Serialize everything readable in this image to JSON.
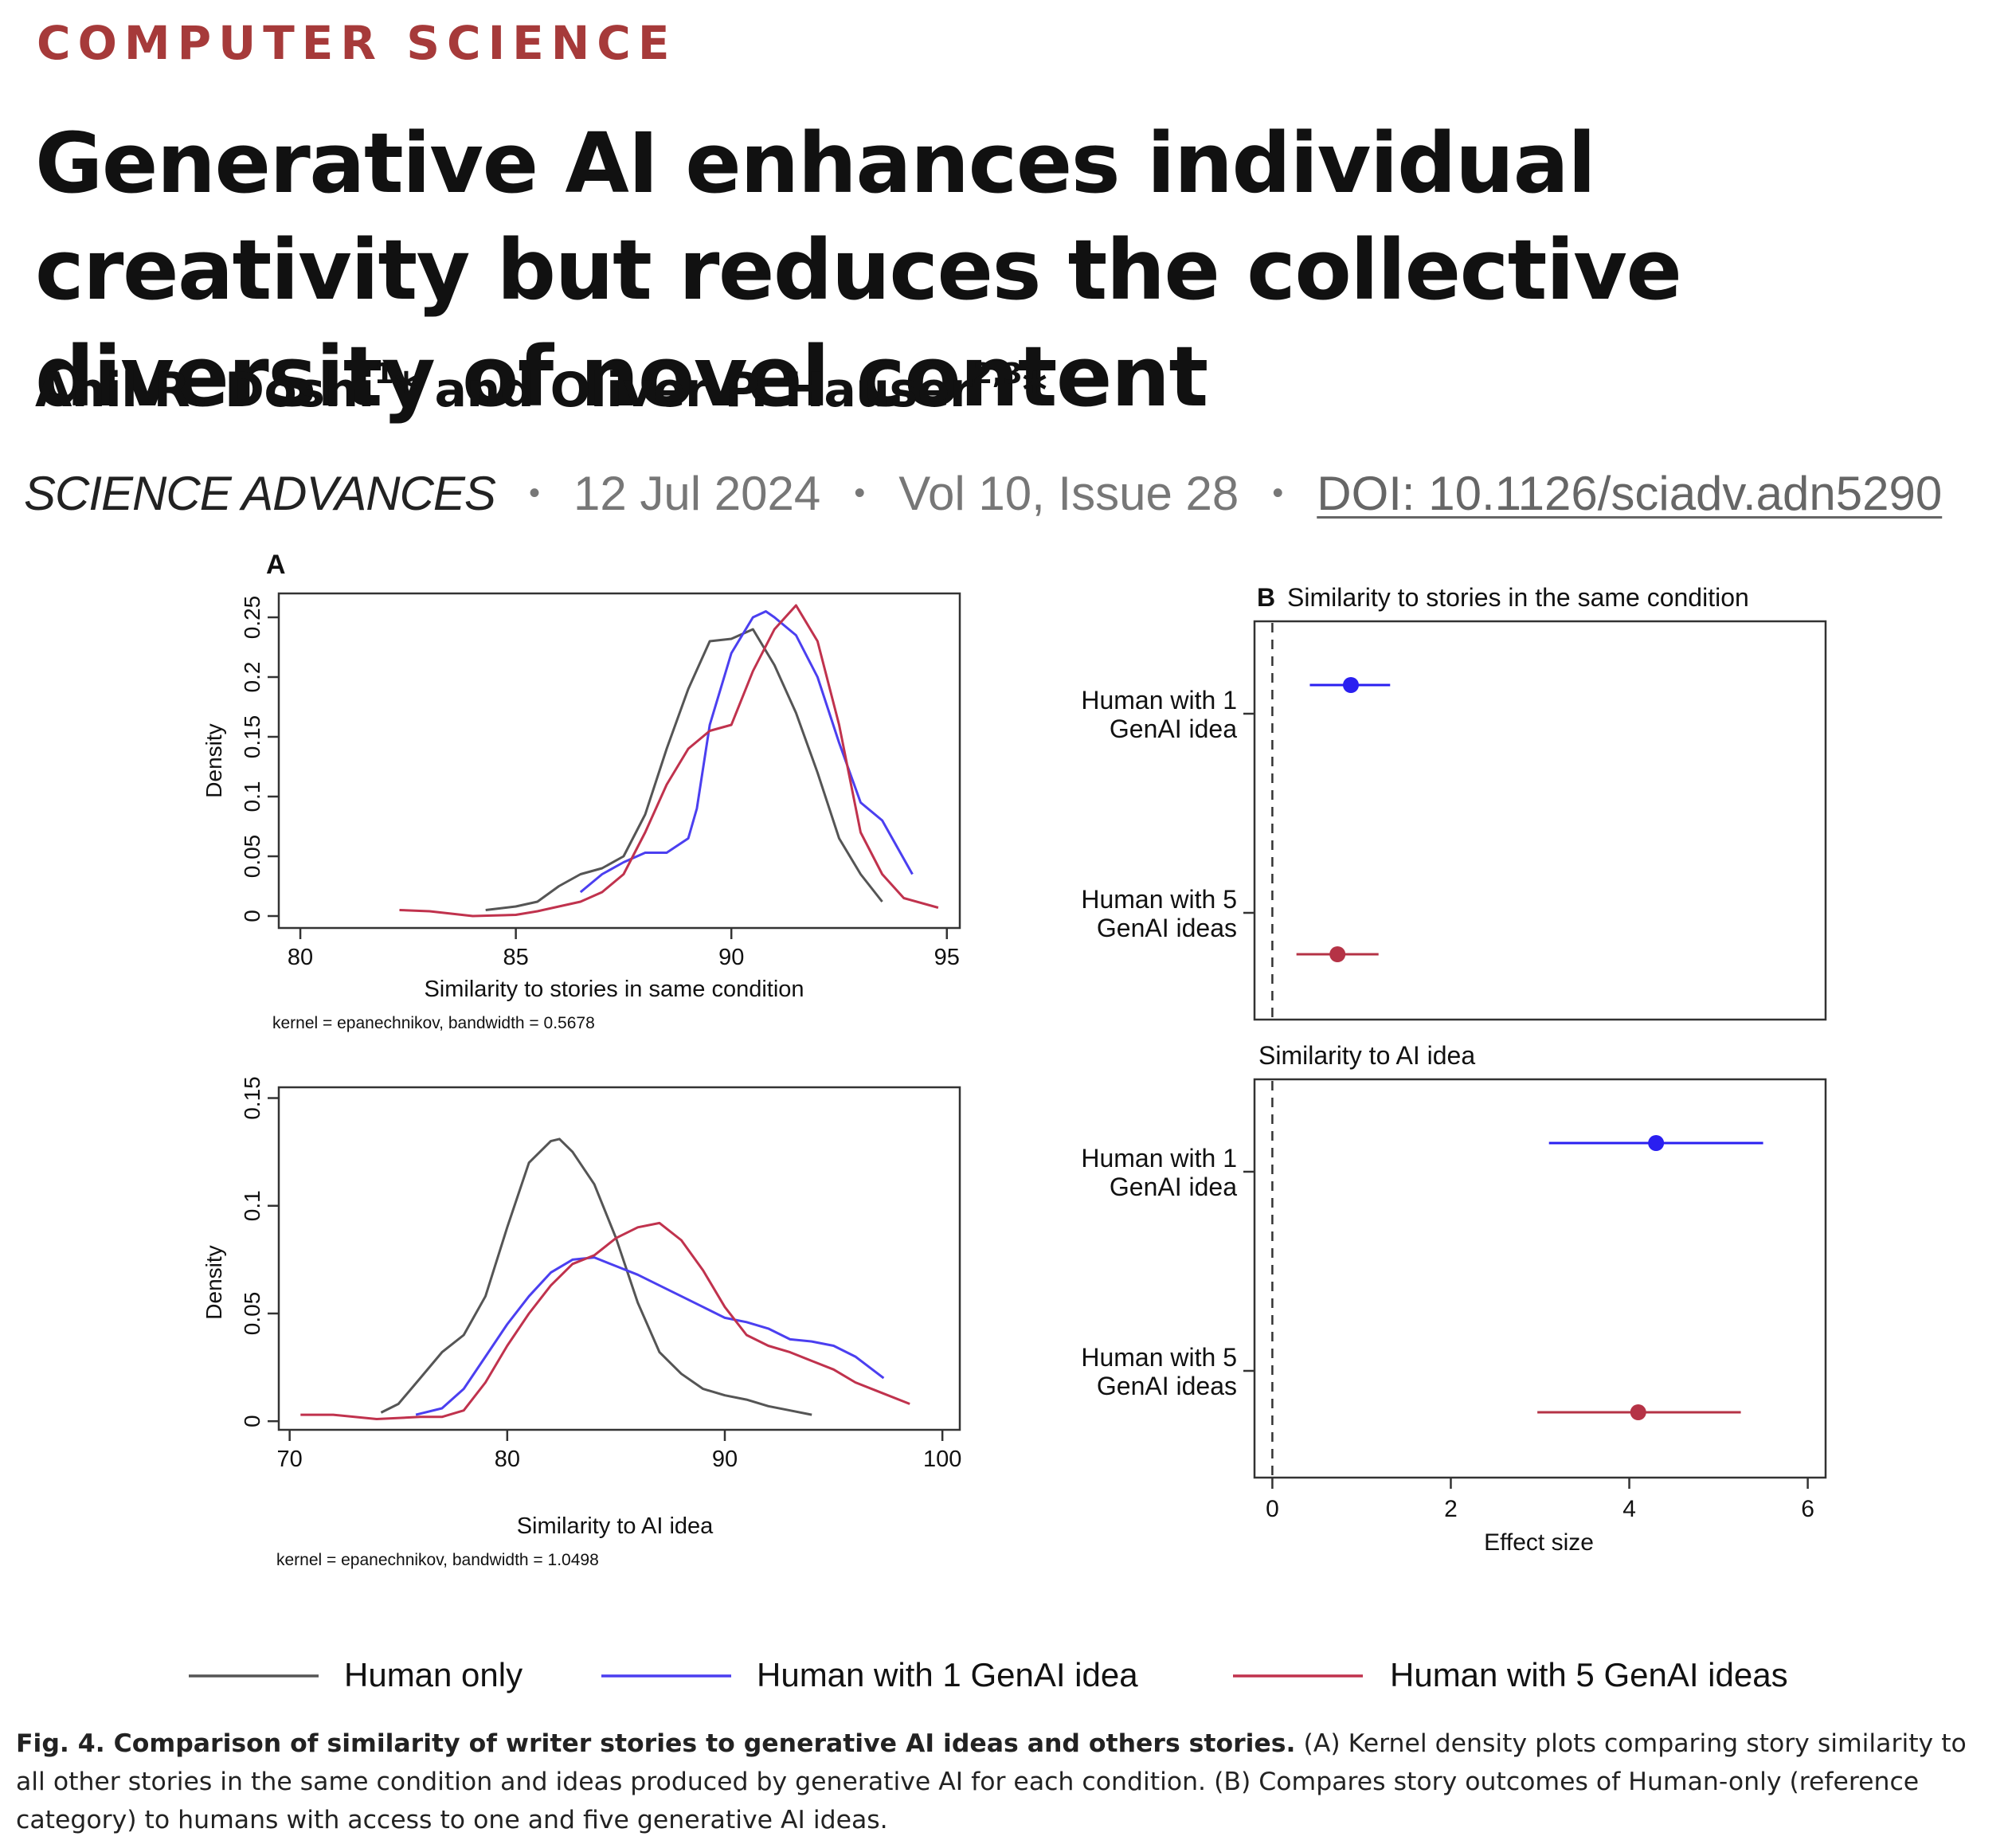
{
  "header": {
    "section": "COMPUTER SCIENCE",
    "title": "Generative AI enhances individual creativity but reduces the collective diversity of novel content",
    "author1": "Anil R. Doshi",
    "author1_sup": "1",
    "author1_mark": "*",
    "and": " and ",
    "author2": "Oliver P. Hauser",
    "author2_sup": "2,3",
    "author2_mark": "*"
  },
  "meta": {
    "journal": "SCIENCE ADVANCES",
    "separator": "•",
    "date": "12 Jul 2024",
    "volume": "Vol 10, Issue 28",
    "doi": "DOI: 10.1126/sciadv.adn5290"
  },
  "figure": {
    "panel_a_label": "A",
    "panel_b_label": "B",
    "legend": [
      "Human only",
      "Human with 1 GenAI idea",
      "Human with 5 GenAI ideas"
    ],
    "caption_lead": "Fig. 4. Comparison of similarity of writer stories to generative AI ideas and others stories.",
    "caption_body": " (A) Kernel density plots comparing story similarity to all other stories in the same condition and ideas produced by generative AI for each condition. (B) Compares story outcomes of Human-only (reference category) to humans with access to one and five generative AI ideas."
  },
  "chart_data": [
    {
      "type": "line",
      "panel": "A (top)",
      "xlabel": "Similarity to stories in same condition",
      "ylabel": "Density",
      "note": "kernel = epanechnikov, bandwidth = 0.5678",
      "xlim": [
        79.5,
        95.3
      ],
      "ylim": [
        -0.01,
        0.27
      ],
      "xticks": [
        "80",
        "85",
        "90",
        "95"
      ],
      "yticks": [
        "0",
        "0.05",
        "0.1",
        "0.15",
        "0.2",
        "0.25"
      ],
      "colors": [
        "#555555",
        "#4b3ff0",
        "#c0324d"
      ],
      "series": [
        {
          "name": "Human only",
          "x": [
            84.3,
            85,
            85.5,
            86,
            86.5,
            87,
            87.5,
            88,
            88.5,
            89,
            89.5,
            90,
            90.5,
            91,
            91.5,
            92,
            92.5,
            93,
            93.5
          ],
          "y": [
            0.005,
            0.008,
            0.012,
            0.025,
            0.035,
            0.04,
            0.05,
            0.085,
            0.14,
            0.19,
            0.23,
            0.232,
            0.24,
            0.21,
            0.17,
            0.12,
            0.065,
            0.035,
            0.012
          ]
        },
        {
          "name": "Human with 1 GenAI idea",
          "x": [
            86.5,
            87,
            87.5,
            88,
            88.5,
            89,
            89.2,
            89.5,
            90,
            90.5,
            90.8,
            91,
            91.5,
            92,
            92.5,
            93,
            93.5,
            94.2
          ],
          "y": [
            0.02,
            0.035,
            0.045,
            0.053,
            0.053,
            0.065,
            0.09,
            0.16,
            0.22,
            0.25,
            0.255,
            0.25,
            0.235,
            0.2,
            0.145,
            0.095,
            0.08,
            0.035
          ]
        },
        {
          "name": "Human with 5 GenAI ideas",
          "x": [
            82.3,
            83,
            84,
            85,
            85.5,
            86,
            86.5,
            87,
            87.5,
            88,
            88.5,
            89,
            89.5,
            90,
            90.5,
            91,
            91.5,
            92,
            92.5,
            93,
            93.5,
            94,
            94.8
          ],
          "y": [
            0.005,
            0.004,
            0.0,
            0.001,
            0.004,
            0.008,
            0.012,
            0.02,
            0.035,
            0.07,
            0.11,
            0.14,
            0.155,
            0.16,
            0.205,
            0.24,
            0.26,
            0.23,
            0.16,
            0.07,
            0.035,
            0.015,
            0.007
          ]
        }
      ]
    },
    {
      "type": "line",
      "panel": "A (bottom)",
      "xlabel": "Similarity to AI idea",
      "ylabel": "Density",
      "note": "kernel = epanechnikov, bandwidth = 1.0498",
      "xlim": [
        69.5,
        100.8
      ],
      "ylim": [
        -0.004,
        0.155
      ],
      "xticks": [
        "70",
        "80",
        "90",
        "100"
      ],
      "yticks": [
        "0",
        "0.05",
        "0.1",
        "0.15"
      ],
      "colors": [
        "#555555",
        "#4b3ff0",
        "#c0324d"
      ],
      "series": [
        {
          "name": "Human only",
          "x": [
            74.2,
            75,
            76,
            77,
            78,
            79,
            80,
            81,
            82,
            82.4,
            83,
            84,
            85,
            86,
            87,
            88,
            89,
            90,
            91,
            92,
            93,
            94
          ],
          "y": [
            0.004,
            0.008,
            0.02,
            0.032,
            0.04,
            0.058,
            0.09,
            0.12,
            0.13,
            0.131,
            0.125,
            0.11,
            0.085,
            0.055,
            0.032,
            0.022,
            0.015,
            0.012,
            0.01,
            0.007,
            0.005,
            0.003
          ]
        },
        {
          "name": "Human with 1 GenAI idea",
          "x": [
            75.8,
            77,
            78,
            79,
            80,
            81,
            82,
            83,
            84,
            85,
            86,
            87,
            88,
            89,
            90,
            91,
            92,
            93,
            94,
            95,
            96,
            97.3
          ],
          "y": [
            0.003,
            0.006,
            0.015,
            0.03,
            0.045,
            0.058,
            0.069,
            0.075,
            0.076,
            0.072,
            0.068,
            0.063,
            0.058,
            0.053,
            0.048,
            0.046,
            0.043,
            0.038,
            0.037,
            0.035,
            0.03,
            0.02
          ]
        },
        {
          "name": "Human with 5 GenAI ideas",
          "x": [
            70.5,
            72,
            74,
            76,
            77,
            78,
            79,
            80,
            81,
            82,
            83,
            84,
            85,
            86,
            87,
            88,
            89,
            90,
            91,
            92,
            93,
            94,
            95,
            96,
            97,
            98.5
          ],
          "y": [
            0.003,
            0.003,
            0.001,
            0.002,
            0.002,
            0.005,
            0.018,
            0.035,
            0.05,
            0.063,
            0.073,
            0.077,
            0.085,
            0.09,
            0.092,
            0.084,
            0.07,
            0.053,
            0.04,
            0.035,
            0.032,
            0.028,
            0.024,
            0.018,
            0.014,
            0.008
          ]
        }
      ]
    },
    {
      "type": "scatter",
      "panel": "B (top)",
      "title": "Similarity to stories in the same condition",
      "xlabel": "",
      "xlim": [
        -0.2,
        6.2
      ],
      "categories": [
        "Human with 1\nGenAI idea",
        "Human with 5\nGenAI ideas"
      ],
      "points": [
        {
          "label": "Human with 1 GenAI idea",
          "estimate": 0.88,
          "ci_low": 0.42,
          "ci_high": 1.32,
          "color": "#2a1ff0"
        },
        {
          "label": "Human with 5 GenAI ideas",
          "estimate": 0.73,
          "ci_low": 0.27,
          "ci_high": 1.19,
          "color": "#b53346"
        }
      ]
    },
    {
      "type": "scatter",
      "panel": "B (bottom)",
      "title": "Similarity to AI idea",
      "xlabel": "Effect size",
      "xlim": [
        -0.2,
        6.2
      ],
      "xticks": [
        "0",
        "2",
        "4",
        "6"
      ],
      "categories": [
        "Human with 1\nGenAI idea",
        "Human with 5\nGenAI ideas"
      ],
      "points": [
        {
          "label": "Human with 1 GenAI idea",
          "estimate": 4.3,
          "ci_low": 3.1,
          "ci_high": 5.5,
          "color": "#2a1ff0"
        },
        {
          "label": "Human with 5 GenAI ideas",
          "estimate": 4.1,
          "ci_low": 2.97,
          "ci_high": 5.25,
          "color": "#b53346"
        }
      ]
    }
  ]
}
